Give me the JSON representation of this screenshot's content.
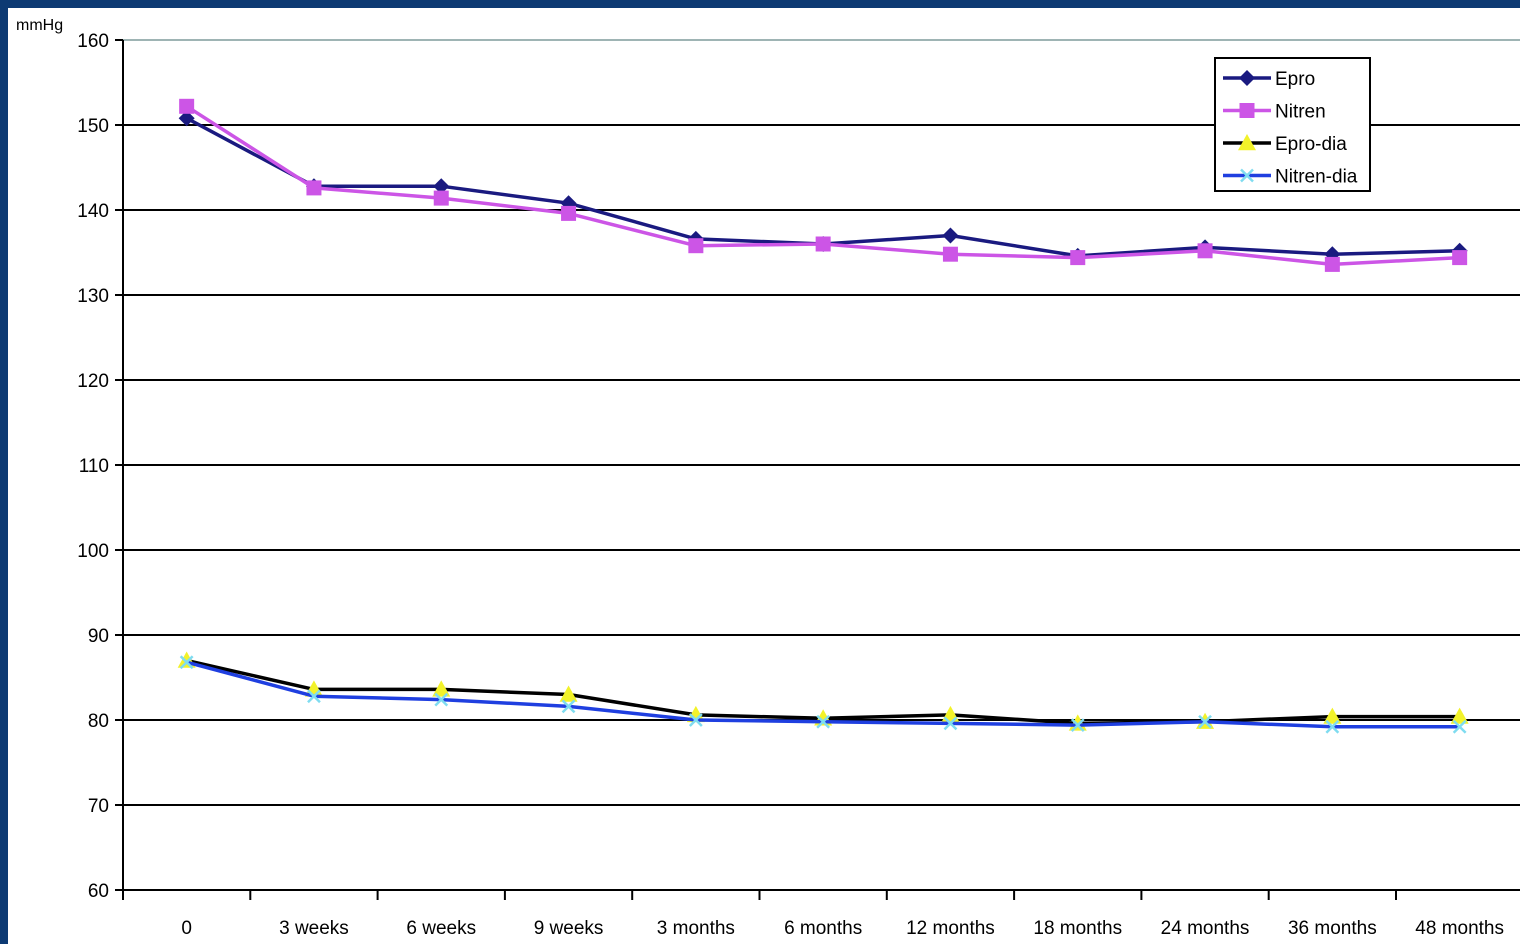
{
  "chart_data": {
    "type": "line",
    "unit_label": "mmHg",
    "categories": [
      "0",
      "3 weeks",
      "6 weeks",
      "9 weeks",
      "3 months",
      "6 months",
      "12 months",
      "18 months",
      "24 months",
      "36 months",
      "48 months"
    ],
    "ylim": [
      60,
      160
    ],
    "yticks": [
      60,
      70,
      80,
      90,
      100,
      110,
      120,
      130,
      140,
      150,
      160
    ],
    "grid": true,
    "legend_position": "top-right",
    "series": [
      {
        "name": "Epro",
        "color": "#1a1a80",
        "marker": "diamond",
        "values": [
          150.8,
          142.8,
          142.8,
          140.8,
          136.6,
          136.0,
          137.0,
          134.6,
          135.6,
          134.8,
          135.2
        ]
      },
      {
        "name": "Nitren",
        "color": "#cc55e6",
        "marker": "square",
        "values": [
          152.2,
          142.6,
          141.4,
          139.6,
          135.8,
          136.0,
          134.8,
          134.4,
          135.2,
          133.6,
          134.4
        ]
      },
      {
        "name": "Epro-dia",
        "color": "#000000",
        "marker": "triangle",
        "marker_color": "#f2f22a",
        "values": [
          87.0,
          83.6,
          83.6,
          83.0,
          80.6,
          80.2,
          80.6,
          79.6,
          79.8,
          80.4,
          80.4
        ]
      },
      {
        "name": "Nitren-dia",
        "color": "#1f3fe0",
        "marker": "x",
        "marker_color": "#7fdcf0",
        "values": [
          86.8,
          82.8,
          82.4,
          81.6,
          80.0,
          79.8,
          79.6,
          79.4,
          79.8,
          79.2,
          79.2
        ]
      }
    ]
  }
}
